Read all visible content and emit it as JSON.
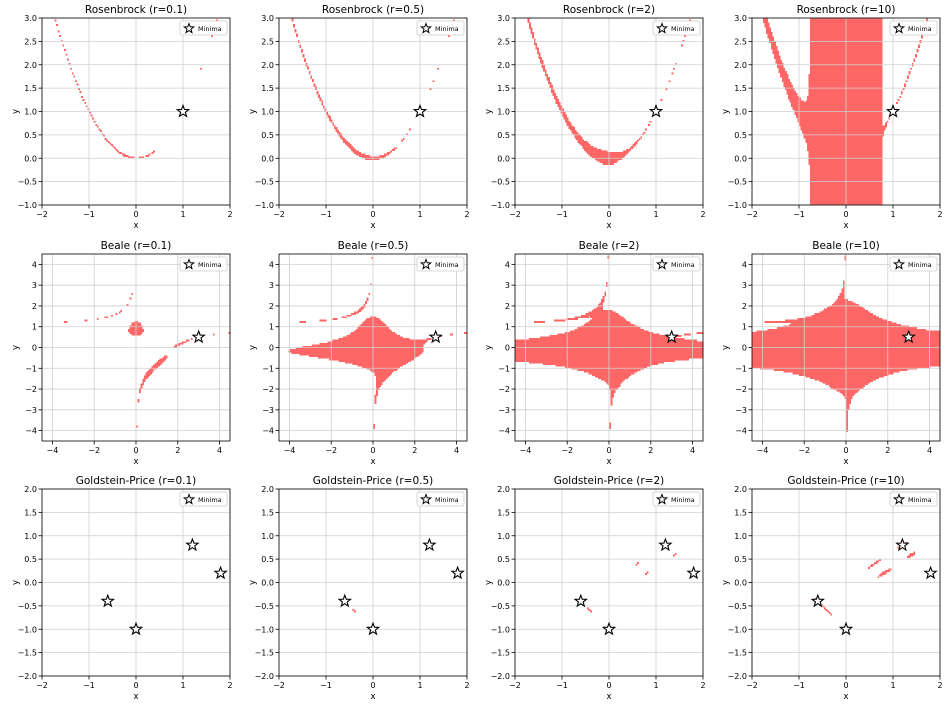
{
  "colors": {
    "region": "#ff6666",
    "grid": "#cfcfcf",
    "axis": "#000000",
    "background": "#ffffff"
  },
  "chart_data": {
    "type": "region-map",
    "legend": {
      "label": "Minima",
      "marker": "star-icon",
      "placement": "top-right"
    },
    "xlabel": "x",
    "ylabel": "y",
    "grid": true,
    "columns_r": [
      "0.1",
      "0.5",
      "2",
      "10"
    ],
    "rows": [
      {
        "function": "Rosenbrock",
        "xlim": [
          -2,
          2
        ],
        "ylim": [
          -1,
          3
        ],
        "xticks": [
          -2,
          -1,
          0,
          1,
          2
        ],
        "yticks": [
          -1.0,
          -0.5,
          0.0,
          0.5,
          1.0,
          1.5,
          2.0,
          2.5,
          3.0
        ],
        "minima": [
          [
            1,
            1
          ]
        ],
        "panels": [
          {
            "title": "Rosenbrock (r=0.1)",
            "r": 0.1
          },
          {
            "title": "Rosenbrock (r=0.5)",
            "r": 0.5
          },
          {
            "title": "Rosenbrock (r=2)",
            "r": 2
          },
          {
            "title": "Rosenbrock (r=10)",
            "r": 10
          }
        ]
      },
      {
        "function": "Beale",
        "xlim": [
          -4.5,
          4.5
        ],
        "ylim": [
          -4.5,
          4.5
        ],
        "xticks": [
          -4,
          -2,
          0,
          2,
          4
        ],
        "yticks": [
          -4,
          -3,
          -2,
          -1,
          0,
          1,
          2,
          3,
          4
        ],
        "minima": [
          [
            3,
            0.5
          ]
        ],
        "panels": [
          {
            "title": "Beale (r=0.1)",
            "r": 0.1
          },
          {
            "title": "Beale (r=0.5)",
            "r": 0.5
          },
          {
            "title": "Beale (r=2)",
            "r": 2
          },
          {
            "title": "Beale (r=10)",
            "r": 10
          }
        ]
      },
      {
        "function": "Goldstein-Price",
        "xlim": [
          -2,
          2
        ],
        "ylim": [
          -2,
          2
        ],
        "xticks": [
          -2,
          -1,
          0,
          1,
          2
        ],
        "yticks": [
          -2.0,
          -1.5,
          -1.0,
          -0.5,
          0.0,
          0.5,
          1.0,
          1.5,
          2.0
        ],
        "minima": [
          [
            0,
            -1
          ],
          [
            -0.6,
            -0.4
          ],
          [
            1.2,
            0.8
          ],
          [
            1.8,
            0.2
          ]
        ],
        "panels": [
          {
            "title": "Goldstein-Price (r=0.1)",
            "r": 0.1
          },
          {
            "title": "Goldstein-Price (r=0.5)",
            "r": 0.5
          },
          {
            "title": "Goldstein-Price (r=2)",
            "r": 2
          },
          {
            "title": "Goldstein-Price (r=10)",
            "r": 10
          }
        ]
      }
    ]
  }
}
